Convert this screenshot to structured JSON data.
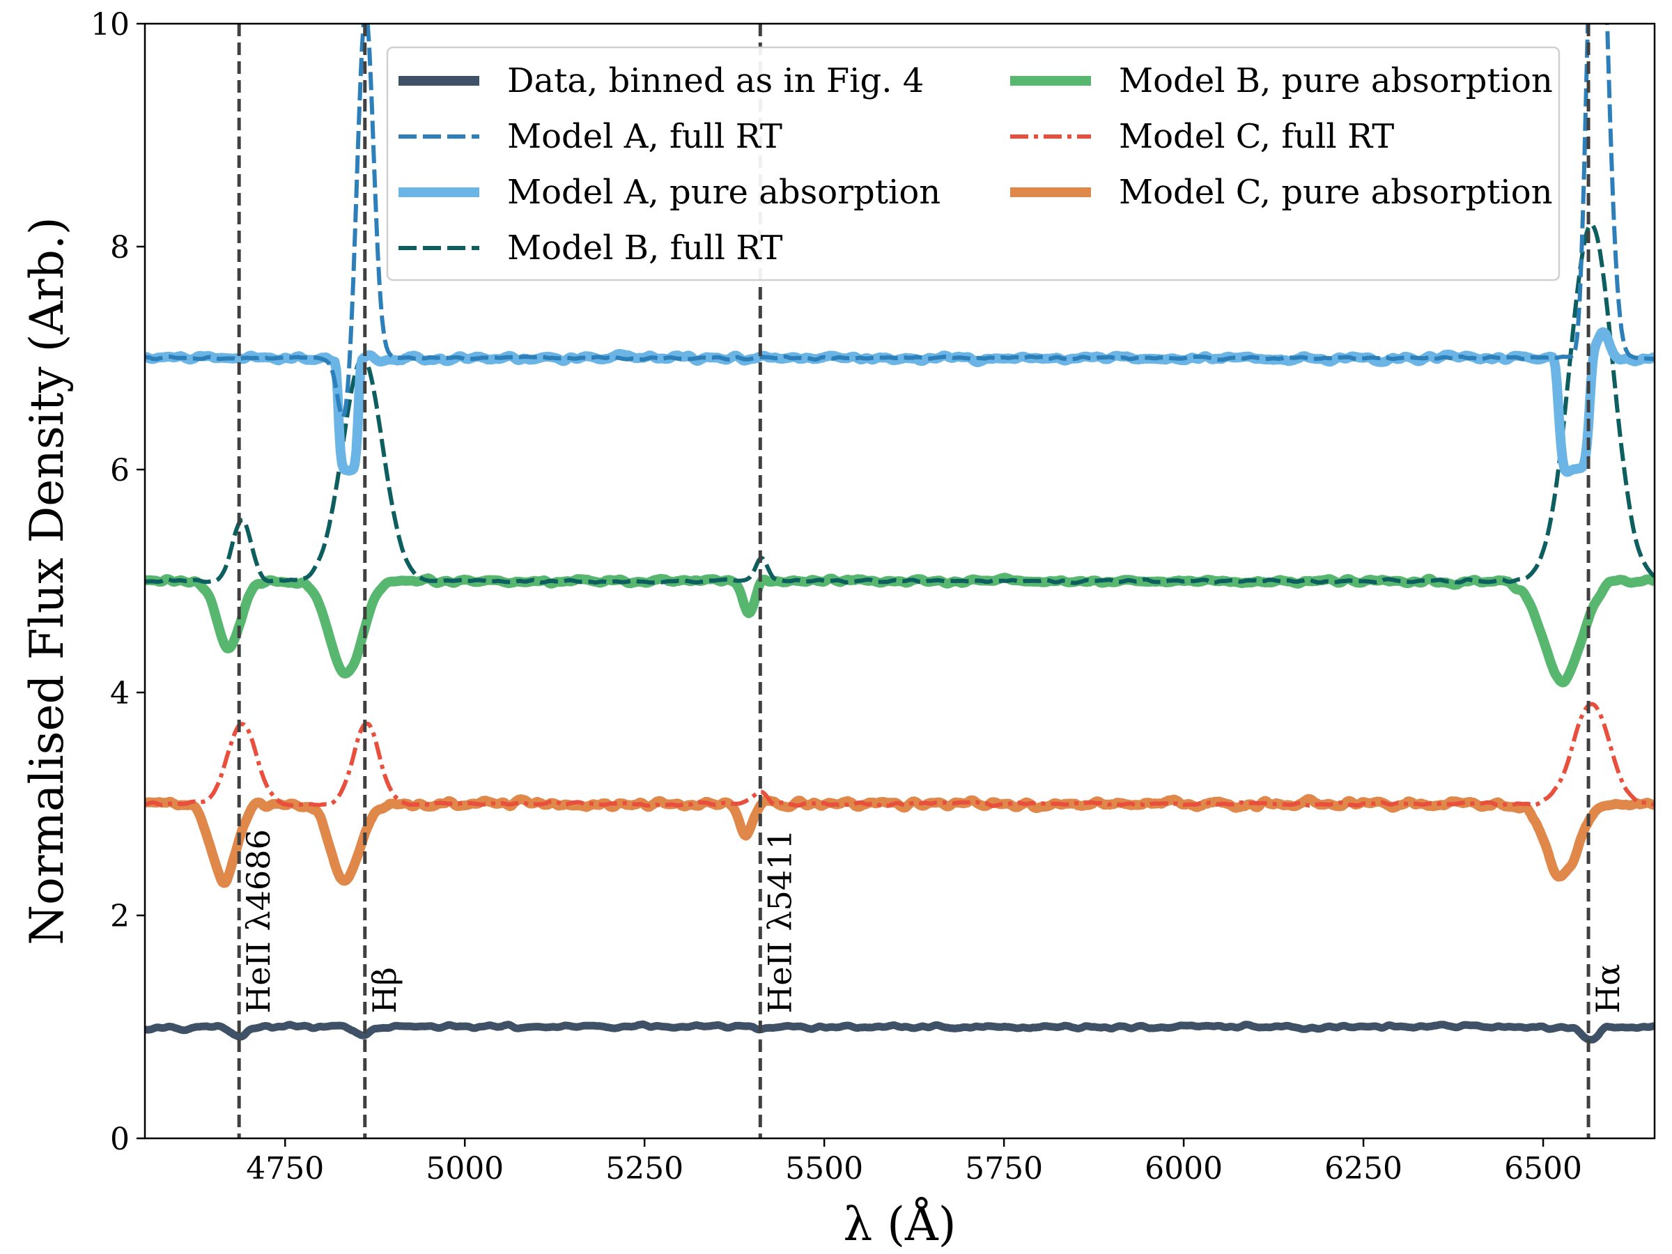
{
  "chart_data": {
    "type": "line",
    "title": "",
    "xlabel": "λ (Å)",
    "ylabel": "Normalised Flux Density (Arb.)",
    "xlim": [
      4555,
      6655
    ],
    "ylim": [
      0,
      10
    ],
    "xticks": [
      4750,
      5000,
      5250,
      5500,
      5750,
      6000,
      6250,
      6500
    ],
    "xtick_labels": [
      "4750",
      "5000",
      "5250",
      "5500",
      "5750",
      "6000",
      "6250",
      "6500"
    ],
    "yticks": [
      0,
      2,
      4,
      6,
      8,
      10
    ],
    "ytick_labels": [
      "0",
      "2",
      "4",
      "6",
      "8",
      "10"
    ],
    "grid": false,
    "legend_position": "top-right",
    "reference_lines": [
      {
        "x": 4686,
        "label": "HeII λ4686"
      },
      {
        "x": 4861,
        "label": "Hβ"
      },
      {
        "x": 5411,
        "label": "HeII λ5411"
      },
      {
        "x": 6563,
        "label": "Hα"
      }
    ],
    "series": [
      {
        "name": "Data, binned as in Fig. 4",
        "color": "#3f5166",
        "style": "solid",
        "continuum": 1.0,
        "noise": 0.018,
        "features": [
          [
            4686,
            -0.08,
            10
          ],
          [
            4861,
            -0.07,
            12
          ],
          [
            5411,
            -0.02,
            8
          ],
          [
            6563,
            -0.13,
            10
          ]
        ]
      },
      {
        "name": "Model A, pure absorption",
        "color": "#6ab4e6",
        "style": "solid",
        "continuum": 7.0,
        "noise": 0.028,
        "features": [
          [
            4838,
            -1.0,
            13,
            "flat"
          ],
          [
            6543,
            -1.0,
            20,
            "flat"
          ],
          [
            6583,
            0.25,
            8
          ]
        ]
      },
      {
        "name": "Model A, full RT",
        "color": "#2d7fba",
        "style": "dash",
        "continuum": 7.0,
        "noise": 0.012,
        "features": [
          [
            4832,
            -0.6,
            9
          ],
          [
            4862,
            3.1,
            11
          ],
          [
            6552,
            -0.6,
            8
          ],
          [
            6575,
            5.0,
            14
          ]
        ]
      },
      {
        "name": "Model B, pure absorption",
        "color": "#58b76f",
        "style": "solid",
        "continuum": 5.0,
        "noise": 0.025,
        "features": [
          [
            4672,
            -0.6,
            16
          ],
          [
            4835,
            -0.85,
            22
          ],
          [
            5395,
            -0.3,
            8
          ],
          [
            6527,
            -0.9,
            26
          ]
        ]
      },
      {
        "name": "Model B, full RT",
        "color": "#0d5e5e",
        "style": "dash",
        "continuum": 5.0,
        "noise": 0.012,
        "features": [
          [
            4690,
            0.55,
            13
          ],
          [
            4858,
            2.0,
            28
          ],
          [
            5413,
            0.2,
            8
          ],
          [
            6567,
            3.2,
            30
          ]
        ]
      },
      {
        "name": "Model C, pure absorption",
        "color": "#e0874a",
        "style": "solid",
        "continuum": 3.0,
        "noise": 0.035,
        "features": [
          [
            4665,
            -0.7,
            17
          ],
          [
            4835,
            -0.7,
            20
          ],
          [
            5390,
            -0.28,
            9
          ],
          [
            6525,
            -0.65,
            22
          ]
        ]
      },
      {
        "name": "Model C, full RT",
        "color": "#e84f3d",
        "style": "dashdot",
        "continuum": 3.0,
        "noise": 0.015,
        "features": [
          [
            4690,
            0.72,
            20
          ],
          [
            4863,
            0.72,
            18
          ],
          [
            5411,
            0.1,
            10
          ],
          [
            6567,
            0.9,
            25
          ]
        ]
      }
    ],
    "legend_order": [
      "Data, binned as in Fig. 4",
      "Model A, full RT",
      "Model A, pure absorption",
      "Model B, full RT",
      "Model B, pure absorption",
      "Model C, full RT",
      "Model C, pure absorption"
    ]
  }
}
